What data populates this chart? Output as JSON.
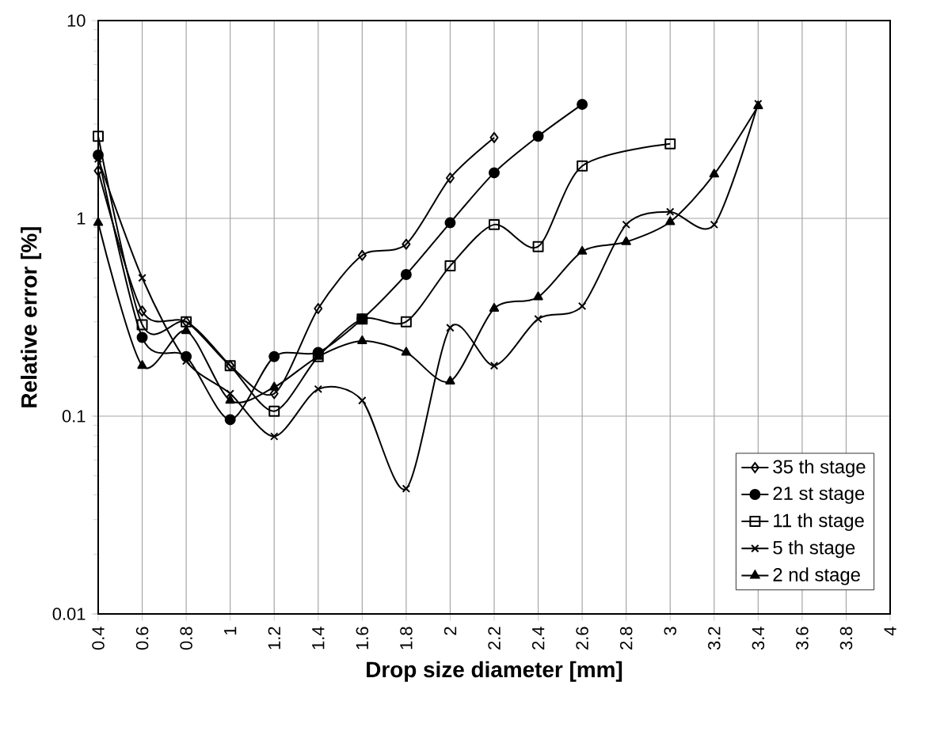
{
  "chart_data": {
    "type": "line",
    "xlabel": "Drop size diameter  [mm]",
    "ylabel": "Relative error [%]",
    "log": "y",
    "grid": true,
    "legend": "bottom right",
    "line_style": "solid",
    "xlim": [
      0.4,
      4
    ],
    "xticks": [
      0.4,
      0.6,
      0.8,
      1,
      1.2,
      1.4,
      1.6,
      1.8,
      2,
      2.2,
      2.4,
      2.6,
      2.8,
      3,
      3.2,
      3.4,
      3.6,
      3.8,
      4
    ],
    "ylim": [
      0.01,
      10
    ],
    "yticks": [
      0.01,
      0.1,
      1,
      10
    ],
    "series": [
      {
        "name": "35 th stage",
        "color": "#000000",
        "marker": "diamond",
        "x": [
          0.4,
          0.6,
          0.8,
          1,
          1.2,
          1.4,
          1.6,
          1.8,
          2,
          2.2
        ],
        "values": [
          1.74,
          0.34,
          0.3,
          0.18,
          0.13,
          0.35,
          0.65,
          0.74,
          1.6,
          2.56
        ]
      },
      {
        "name": "21 st stage",
        "color": "#000000",
        "marker": "circle",
        "x": [
          0.4,
          0.6,
          0.8,
          1,
          1.2,
          1.4,
          1.6,
          1.8,
          2,
          2.2,
          2.4,
          2.6
        ],
        "values": [
          2.09,
          0.25,
          0.2,
          0.096,
          0.2,
          0.21,
          0.31,
          0.52,
          0.95,
          1.7,
          2.6,
          3.77
        ]
      },
      {
        "name": "11 th stage",
        "color": "#000000",
        "marker": "square",
        "x": [
          0.4,
          0.6,
          0.8,
          1,
          1.2,
          1.4,
          1.6,
          1.8,
          2,
          2.2,
          2.4,
          2.6,
          3
        ],
        "values": [
          2.6,
          0.29,
          0.3,
          0.18,
          0.106,
          0.2,
          0.31,
          0.3,
          0.575,
          0.93,
          0.72,
          1.84,
          2.38
        ]
      },
      {
        "name": "5 th stage",
        "color": "#000000",
        "marker": "cross",
        "x": [
          0.4,
          0.6,
          0.8,
          1,
          1.2,
          1.4,
          1.6,
          1.8,
          2,
          2.2,
          2.4,
          2.6,
          2.8,
          3,
          3.2,
          3.4
        ],
        "values": [
          2.0,
          0.5,
          0.19,
          0.13,
          0.079,
          0.137,
          0.12,
          0.043,
          0.28,
          0.18,
          0.31,
          0.36,
          0.93,
          1.08,
          0.93,
          3.8
        ]
      },
      {
        "name": "2 nd stage",
        "color": "#000000",
        "marker": "triangle",
        "x": [
          0.4,
          0.6,
          0.8,
          1,
          1.2,
          1.4,
          1.6,
          1.8,
          2,
          2.2,
          2.4,
          2.6,
          2.8,
          3,
          3.2,
          3.4
        ],
        "values": [
          0.95,
          0.18,
          0.27,
          0.12,
          0.14,
          0.2,
          0.24,
          0.21,
          0.15,
          0.35,
          0.4,
          0.68,
          0.76,
          0.96,
          1.67,
          3.7
        ]
      }
    ]
  }
}
